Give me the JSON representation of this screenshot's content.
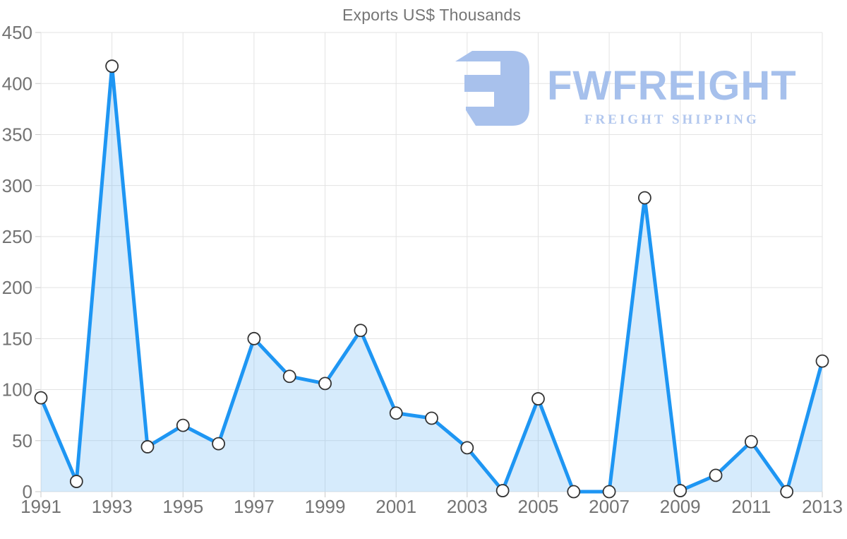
{
  "title": "Exports US$ Thousands",
  "logo": {
    "name": "FWFREIGHT",
    "tagline": "FREIGHT SHIPPING",
    "icon": "fwfreight-mark",
    "icon_color": "#a8c1ec",
    "name_color": "#a6c0ec",
    "tagline_color": "#b2c7ee"
  },
  "colors": {
    "line": "#1e96f3",
    "area": "rgba(120,190,245,0.30)",
    "marker_fill": "#ffffff",
    "marker_stroke": "#333333",
    "grid": "#e3e3e3",
    "tick": "#c9c9c9",
    "axis_text": "#737373",
    "title_text": "#757575"
  },
  "chart_data": {
    "type": "area",
    "title": "Exports US$ Thousands",
    "xlabel": "",
    "ylabel": "",
    "x": [
      1991,
      1992,
      1993,
      1994,
      1995,
      1996,
      1997,
      1998,
      1999,
      2000,
      2001,
      2002,
      2003,
      2004,
      2005,
      2006,
      2007,
      2008,
      2009,
      2010,
      2011,
      2012,
      2013
    ],
    "values": [
      92,
      10,
      417,
      44,
      65,
      47,
      150,
      113,
      106,
      158,
      77,
      72,
      43,
      1,
      91,
      0,
      0,
      288,
      1,
      16,
      49,
      0,
      128
    ],
    "ylim": [
      0,
      450
    ],
    "yticks": [
      0,
      50,
      100,
      150,
      200,
      250,
      300,
      350,
      400,
      450
    ],
    "xtick_labels": [
      "1991",
      "1993",
      "1995",
      "1997",
      "1999",
      "2001",
      "2003",
      "2005",
      "2007",
      "2009",
      "2011",
      "2013"
    ],
    "xtick_every": 2,
    "grid": true,
    "legend": "none",
    "marker": "circle"
  }
}
